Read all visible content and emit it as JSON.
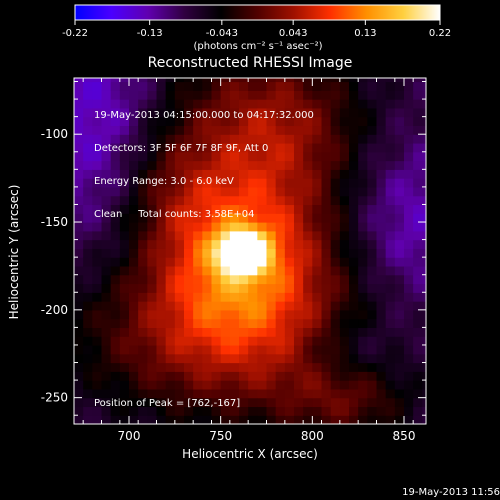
{
  "colorbar": {
    "min": -0.22,
    "max": 0.22,
    "tick_labels": [
      "-0.22",
      "-0.13",
      "-0.043",
      "0.043",
      "0.13",
      "0.22"
    ],
    "tick_values": [
      -0.22,
      -0.13,
      -0.043,
      0.043,
      0.13,
      0.22
    ],
    "units_label": "(photons cm⁻² s⁻¹ asec⁻²)",
    "colors": [
      "#0000ff",
      "#4a00ff",
      "#6000b0",
      "#300040",
      "#000000",
      "#500000",
      "#a01000",
      "#ff3000",
      "#ff9000",
      "#ffd040",
      "#ffffff"
    ]
  },
  "chart_data": {
    "type": "heatmap",
    "title": "Reconstructed RHESSI Image",
    "xlabel": "Heliocentric X (arcsec)",
    "ylabel": "Heliocentric Y (arcsec)",
    "xlim": [
      670,
      862
    ],
    "ylim": [
      -265,
      -68
    ],
    "x_ticks": [
      700,
      750,
      800,
      850
    ],
    "y_ticks": [
      -100,
      -150,
      -200,
      -250
    ],
    "peak": {
      "x": 762,
      "y": -167
    },
    "info_lines": [
      "19-May-2013 04:15:00.000 to 04:17:32.000",
      "Detectors: 3F 5F 6F 7F 8F 9F, Att 0",
      "Energy Range: 3.0 - 6.0 keV",
      "Clean     Total counts: 3.58E+04"
    ],
    "peak_label": "Position of Peak = [762,-167]"
  },
  "footer_date": "19-May-2013 11:56"
}
